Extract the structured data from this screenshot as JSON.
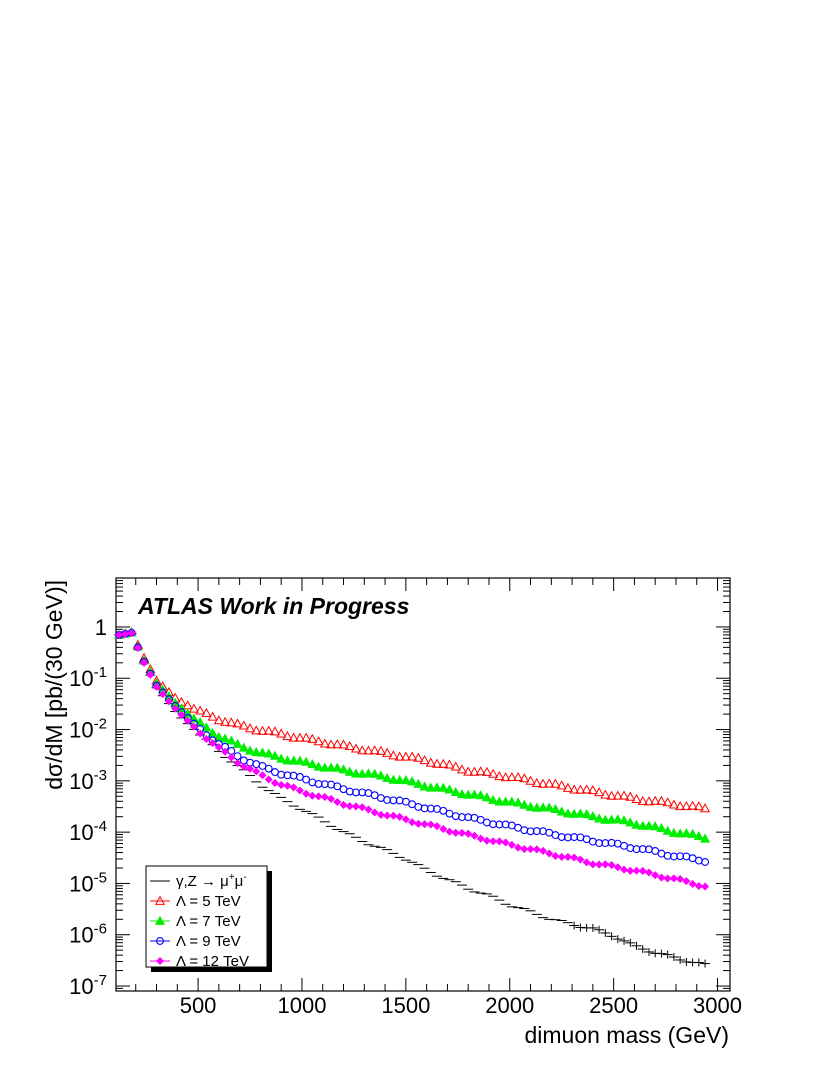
{
  "chart_data": {
    "type": "scatter",
    "title": "",
    "banner": "ATLAS Work in Progress",
    "xlabel": "dimuon mass (GeV)",
    "ylabel": "dσ/dM [pb/(30 GeV)]",
    "xlim": [
      105,
      3060
    ],
    "ylim": [
      8e-08,
      9
    ],
    "yscale": "log",
    "grid": false,
    "legend_position": "bottom-left",
    "x_ticks": [
      500,
      1000,
      1500,
      2000,
      2500,
      3000
    ],
    "x_tick_labels": [
      "500",
      "1000",
      "1500",
      "2000",
      "2500",
      "3000"
    ],
    "y_ticks": [
      1e-07,
      1e-06,
      1e-05,
      0.0001,
      0.001,
      0.01,
      0.1,
      1
    ],
    "y_tick_labels": [
      {
        "base": "10",
        "exp": "-7"
      },
      {
        "base": "10",
        "exp": "-6"
      },
      {
        "base": "10",
        "exp": "-5"
      },
      {
        "base": "10",
        "exp": "-4"
      },
      {
        "base": "10",
        "exp": "-3"
      },
      {
        "base": "10",
        "exp": "-2"
      },
      {
        "base": "10",
        "exp": "-1"
      },
      {
        "base": "1",
        "exp": ""
      }
    ],
    "x_start": 120,
    "bin_width": 30,
    "series": [
      {
        "name": "γ,Z → μ⁺μ⁻",
        "label_parts": {
          "main": "γ,Z → μ",
          "sup1": "+",
          "mid": "μ",
          "sup2": "-"
        },
        "color": "#000000",
        "marker": "errorbar",
        "anchors": [
          [
            120,
            0.7
          ],
          [
            180,
            0.75
          ],
          [
            240,
            0.2
          ],
          [
            300,
            0.065
          ],
          [
            400,
            0.02
          ],
          [
            500,
            0.0085
          ],
          [
            600,
            0.0038
          ],
          [
            700,
            0.0018
          ],
          [
            800,
            0.00085
          ],
          [
            900,
            0.00045
          ],
          [
            1000,
            0.00028
          ],
          [
            1100,
            0.00017
          ],
          [
            1200,
            0.0001
          ],
          [
            1300,
            6.5e-05
          ],
          [
            1400,
            4.5e-05
          ],
          [
            1500,
            3e-05
          ],
          [
            1600,
            1.8e-05
          ],
          [
            1700,
            1.2e-05
          ],
          [
            1800,
            8e-06
          ],
          [
            1900,
            5.8e-06
          ],
          [
            2000,
            3.8e-06
          ],
          [
            2100,
            2.8e-06
          ],
          [
            2200,
            2e-06
          ],
          [
            2300,
            1.6e-06
          ],
          [
            2400,
            1.3e-06
          ],
          [
            2500,
            9.5e-07
          ],
          [
            2600,
            6e-07
          ],
          [
            2700,
            4.5e-07
          ],
          [
            2800,
            3.5e-07
          ],
          [
            2900,
            2.8e-07
          ],
          [
            2960,
            2.5e-07
          ]
        ]
      },
      {
        "name": "Λ = 5 TeV",
        "color": "#ff0000",
        "marker": "open-triangle",
        "anchors": [
          [
            120,
            0.7
          ],
          [
            180,
            0.8
          ],
          [
            240,
            0.25
          ],
          [
            300,
            0.09
          ],
          [
            400,
            0.038
          ],
          [
            500,
            0.023
          ],
          [
            600,
            0.016
          ],
          [
            700,
            0.012
          ],
          [
            800,
            0.0098
          ],
          [
            900,
            0.0082
          ],
          [
            1000,
            0.0068
          ],
          [
            1200,
            0.0048
          ],
          [
            1400,
            0.0035
          ],
          [
            1600,
            0.0025
          ],
          [
            1800,
            0.0016
          ],
          [
            2000,
            0.0012
          ],
          [
            2200,
            0.00085
          ],
          [
            2400,
            0.00062
          ],
          [
            2600,
            0.00045
          ],
          [
            2800,
            0.00035
          ],
          [
            2960,
            0.00028
          ]
        ]
      },
      {
        "name": "Λ = 7 TeV",
        "color": "#00ee00",
        "marker": "filled-triangle",
        "anchors": [
          [
            120,
            0.7
          ],
          [
            180,
            0.78
          ],
          [
            240,
            0.22
          ],
          [
            300,
            0.08
          ],
          [
            400,
            0.03
          ],
          [
            500,
            0.014
          ],
          [
            600,
            0.0075
          ],
          [
            700,
            0.0048
          ],
          [
            800,
            0.0035
          ],
          [
            900,
            0.0028
          ],
          [
            1000,
            0.0023
          ],
          [
            1200,
            0.0016
          ],
          [
            1400,
            0.0012
          ],
          [
            1600,
            0.0008
          ],
          [
            1800,
            0.00055
          ],
          [
            2000,
            0.00038
          ],
          [
            2200,
            0.00028
          ],
          [
            2400,
            0.0002
          ],
          [
            2600,
            0.00015
          ],
          [
            2800,
            0.0001
          ],
          [
            2960,
            7.5e-05
          ]
        ]
      },
      {
        "name": "Λ = 9 TeV",
        "color": "#0000ff",
        "marker": "open-circle",
        "anchors": [
          [
            120,
            0.7
          ],
          [
            180,
            0.77
          ],
          [
            240,
            0.21
          ],
          [
            300,
            0.072
          ],
          [
            400,
            0.026
          ],
          [
            500,
            0.011
          ],
          [
            600,
            0.0052
          ],
          [
            700,
            0.0029
          ],
          [
            800,
            0.0019
          ],
          [
            900,
            0.0014
          ],
          [
            1000,
            0.0011
          ],
          [
            1200,
            0.0007
          ],
          [
            1400,
            0.00046
          ],
          [
            1600,
            0.0003
          ],
          [
            1800,
            0.00019
          ],
          [
            2000,
            0.00013
          ],
          [
            2200,
            9.2e-05
          ],
          [
            2400,
            6.8e-05
          ],
          [
            2600,
            5e-05
          ],
          [
            2800,
            3.4e-05
          ],
          [
            2960,
            2.7e-05
          ]
        ]
      },
      {
        "name": "Λ = 12 TeV",
        "color": "#ff00ff",
        "marker": "filled-diamond",
        "anchors": [
          [
            120,
            0.7
          ],
          [
            180,
            0.76
          ],
          [
            240,
            0.2
          ],
          [
            300,
            0.068
          ],
          [
            400,
            0.023
          ],
          [
            500,
            0.0095
          ],
          [
            600,
            0.0043
          ],
          [
            700,
            0.0022
          ],
          [
            800,
            0.0013
          ],
          [
            900,
            0.00085
          ],
          [
            1000,
            0.00062
          ],
          [
            1200,
            0.00036
          ],
          [
            1400,
            0.00022
          ],
          [
            1600,
            0.00014
          ],
          [
            1800,
            8.8e-05
          ],
          [
            2000,
            5.7e-05
          ],
          [
            2200,
            3.8e-05
          ],
          [
            2400,
            2.5e-05
          ],
          [
            2600,
            1.8e-05
          ],
          [
            2800,
            1.2e-05
          ],
          [
            2960,
            8.5e-06
          ]
        ]
      }
    ]
  }
}
